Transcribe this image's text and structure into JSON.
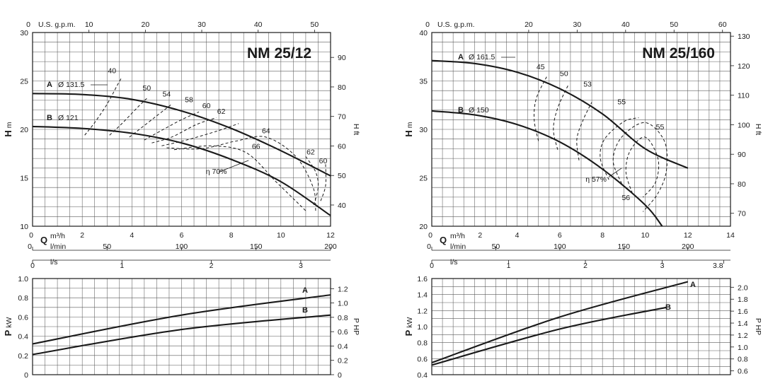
{
  "chart_data": [
    {
      "type": "line",
      "title": "NM 25/12",
      "ylabel": "H",
      "ylabel_unit": "m",
      "ylabel_right": "H ft",
      "xlabel": "Q",
      "xlabel_unit": "m³/h",
      "xlim": [
        0,
        12
      ],
      "ylim": [
        10,
        30
      ],
      "x_ticks": [
        "0",
        "2",
        "4",
        "6",
        "8",
        "10",
        "12"
      ],
      "y_ticks": [
        "10",
        "15",
        "20",
        "25",
        "30"
      ],
      "y_right_ticks": [
        "40",
        "50",
        "60",
        "70",
        "80",
        "90"
      ],
      "top_axis": {
        "label": "U.S. g.p.m.",
        "ticks": [
          "10",
          "20",
          "30",
          "40",
          "50"
        ]
      },
      "lmin_axis": {
        "label": "l/min",
        "ticks": [
          "0",
          "50",
          "100",
          "150",
          "200"
        ]
      },
      "ls_axis": {
        "label": "l/s",
        "ticks": [
          "0",
          "1",
          "2",
          "3"
        ]
      },
      "series": [
        {
          "name": "A",
          "impeller": "Ø 131.5",
          "x": [
            0,
            2,
            4,
            6,
            8,
            10,
            12
          ],
          "y": [
            23.7,
            23.6,
            23.1,
            21.9,
            20.1,
            17.8,
            15.2
          ]
        },
        {
          "name": "B",
          "impeller": "Ø 121",
          "x": [
            0,
            2,
            4,
            6,
            8,
            10,
            12
          ],
          "y": [
            20.3,
            20.1,
            19.6,
            18.6,
            16.9,
            14.6,
            11.1
          ]
        }
      ],
      "efficiency_labels": [
        "40",
        "50",
        "54",
        "58",
        "60",
        "62",
        "64",
        "66",
        "62",
        "60"
      ],
      "efficiency_note": "η 70%"
    },
    {
      "type": "line",
      "title": "NM 25/160",
      "ylabel": "H",
      "ylabel_unit": "m",
      "ylabel_right": "H ft",
      "xlabel": "Q",
      "xlabel_unit": "m³/h",
      "xlim": [
        0,
        14
      ],
      "ylim": [
        20,
        40
      ],
      "x_ticks": [
        "0",
        "2",
        "4",
        "6",
        "8",
        "10",
        "12",
        "14"
      ],
      "y_ticks": [
        "20",
        "25",
        "30",
        "35",
        "40"
      ],
      "y_right_ticks": [
        "70",
        "80",
        "90",
        "100",
        "110",
        "120",
        "130"
      ],
      "top_axis": {
        "label": "U.S. g.p.m.",
        "ticks": [
          "0",
          "20",
          "30",
          "40",
          "50",
          "60"
        ]
      },
      "lmin_axis": {
        "label": "l/min",
        "ticks": [
          "0",
          "50",
          "100",
          "150",
          "200"
        ]
      },
      "ls_axis": {
        "label": "l/s",
        "ticks": [
          "0",
          "1",
          "2",
          "3",
          "3.8"
        ]
      },
      "series": [
        {
          "name": "A",
          "impeller": "Ø 161.5",
          "x": [
            0,
            2,
            4,
            6,
            8,
            10,
            12
          ],
          "y": [
            37.1,
            36.8,
            35.9,
            34.2,
            31.6,
            28.0,
            26.0
          ]
        },
        {
          "name": "B",
          "impeller": "Ø 150",
          "x": [
            0,
            2,
            4,
            6,
            8,
            10,
            10.8
          ],
          "y": [
            31.9,
            31.5,
            30.5,
            28.7,
            25.9,
            22.2,
            20.0
          ]
        }
      ],
      "efficiency_labels": [
        "45",
        "50",
        "53",
        "55",
        "55",
        "56"
      ],
      "efficiency_note": "η 57%"
    },
    {
      "type": "line",
      "ylabel": "P",
      "ylabel_unit": "kW",
      "ylabel_right": "P HP",
      "xlim": [
        0,
        12
      ],
      "ylim": [
        0,
        1.0
      ],
      "y_ticks": [
        "0",
        "0.2",
        "0.4",
        "0.6",
        "0.8",
        "1.0"
      ],
      "y_right_ticks": [
        "0",
        "0.2",
        "0.4",
        "0.6",
        "0.8",
        "1.0",
        "1.2"
      ],
      "series": [
        {
          "name": "A",
          "x": [
            0,
            6,
            12
          ],
          "y": [
            0.32,
            0.62,
            0.83
          ]
        },
        {
          "name": "B",
          "x": [
            0,
            6,
            12
          ],
          "y": [
            0.21,
            0.47,
            0.62
          ]
        }
      ]
    },
    {
      "type": "line",
      "ylabel": "P",
      "ylabel_unit": "kW",
      "ylabel_right": "P HP",
      "xlim": [
        0,
        14
      ],
      "ylim": [
        0.4,
        1.6
      ],
      "y_ticks": [
        "0.4",
        "0.6",
        "0.8",
        "1.0",
        "1.2",
        "1.4",
        "1.6"
      ],
      "y_right_ticks": [
        "0.6",
        "0.8",
        "1.0",
        "1.2",
        "1.4",
        "1.6",
        "1.8",
        "2.0"
      ],
      "series": [
        {
          "name": "A",
          "x": [
            0,
            6,
            12
          ],
          "y": [
            0.55,
            1.12,
            1.56
          ]
        },
        {
          "name": "B",
          "x": [
            0,
            6,
            11
          ],
          "y": [
            0.52,
            0.97,
            1.24
          ]
        }
      ]
    }
  ]
}
